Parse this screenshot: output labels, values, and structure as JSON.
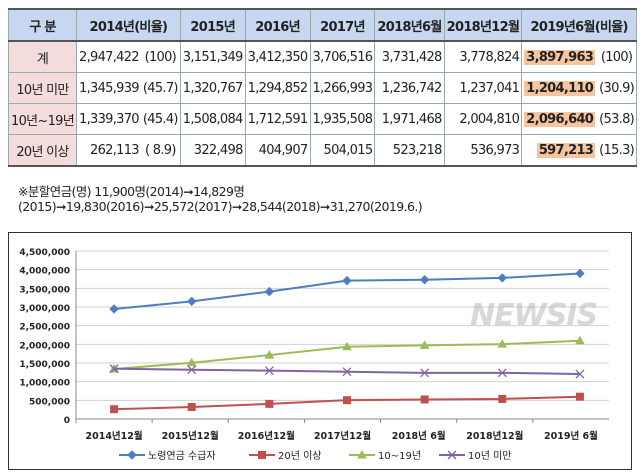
{
  "table": {
    "headers": [
      "구  분",
      "2014년(비율)",
      "2015년",
      "2016년",
      "2017년",
      "2018년6월",
      "2018년12월",
      "2019년6월(비율)"
    ],
    "rows": [
      {
        "label": "계",
        "v2014": "2,947,422",
        "r2014": "(100)",
        "v2015": "3,151,349",
        "v2016": "3,412,350",
        "v2017": "3,706,516",
        "v2018_6": "3,731,428",
        "v2018_12": "3,778,824",
        "v2019": "3,897,963",
        "r2019": "(100)"
      },
      {
        "label": "10년 미만",
        "v2014": "1,345,939",
        "r2014": "(45.7)",
        "v2015": "1,320,767",
        "v2016": "1,294,852",
        "v2017": "1,266,993",
        "v2018_6": "1,236,742",
        "v2018_12": "1,237,041",
        "v2019": "1,204,110",
        "r2019": "(30.9)"
      },
      {
        "label": "10년~19년",
        "v2014": "1,339,370",
        "r2014": "(45.4)",
        "v2015": "1,508,084",
        "v2016": "1,712,591",
        "v2017": "1,935,508",
        "v2018_6": "1,971,468",
        "v2018_12": "2,004,810",
        "v2019": "2,096,640",
        "r2019": "(53.8)"
      },
      {
        "label": "20년 이상",
        "v2014": "262,113",
        "r2014": "( 8.9)",
        "v2015": "322,498",
        "v2016": "404,907",
        "v2017": "504,015",
        "v2018_6": "523,218",
        "v2018_12": "536,973",
        "v2019": "597,213",
        "r2019": "(15.3)"
      }
    ],
    "highlight_color": "#f7c4a0"
  },
  "note": "※분할연금(명) 11,900명(2014)➞14,829명(2015)➞19,830(2016)➞25,572(2017)➞28,544(2018)➞31,270(2019.6.)",
  "watermark": "NEWSIS",
  "chart_data": {
    "type": "line",
    "categories": [
      "2014년12월",
      "2015년12월",
      "2016년12월",
      "2017년12월",
      "2018년 6월",
      "2018년12월",
      "2019년 6월"
    ],
    "ylim": [
      0,
      4500000
    ],
    "yticks": [
      "0",
      "500,000",
      "1,000,000",
      "1,500,000",
      "2,000,000",
      "2,500,000",
      "3,000,000",
      "3,500,000",
      "4,000,000",
      "4,500,000"
    ],
    "grid": true,
    "legend": "bottom",
    "series": [
      {
        "name": "노령연금 수급자",
        "color": "#4f7ec0",
        "marker": "diamond",
        "values": [
          2947422,
          3151349,
          3412350,
          3706516,
          3731428,
          3778824,
          3897963
        ]
      },
      {
        "name": "20년 이상",
        "color": "#c0504d",
        "marker": "square",
        "values": [
          262113,
          322498,
          404907,
          504015,
          523218,
          536973,
          597213
        ]
      },
      {
        "name": "10~19년",
        "color": "#9bbb59",
        "marker": "triangle",
        "values": [
          1339370,
          1508084,
          1712591,
          1935508,
          1971468,
          2004810,
          2096640
        ]
      },
      {
        "name": "10년 미만",
        "color": "#8064a2",
        "marker": "x",
        "values": [
          1345939,
          1320767,
          1294852,
          1266993,
          1236742,
          1237041,
          1204110
        ]
      }
    ]
  }
}
